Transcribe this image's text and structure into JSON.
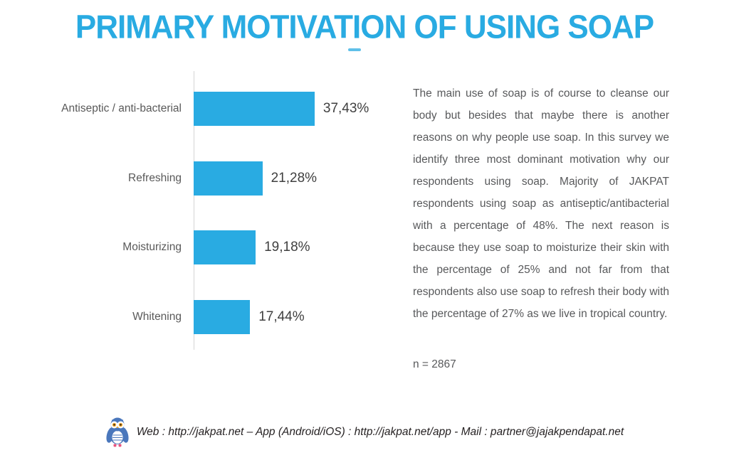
{
  "title": "PRIMARY MOTIVATION OF USING SOAP",
  "chart_data": {
    "type": "bar",
    "orientation": "horizontal",
    "title": "PRIMARY MOTIVATION OF USING SOAP",
    "categories": [
      "Antiseptic / anti-bacterial",
      "Refreshing",
      "Moisturizing",
      "Whitening"
    ],
    "values": [
      37.43,
      21.28,
      19.18,
      17.44
    ],
    "value_labels": [
      "37,43%",
      "21,28%",
      "19,18%",
      "17,44%"
    ],
    "xlabel": "",
    "ylabel": "",
    "xlim": [
      0,
      42
    ],
    "grid": false,
    "legend": "none",
    "bar_color": "#29ABE2"
  },
  "description": "The main use of soap is of course to cleanse our body but besides that maybe there is another reasons on why people use soap. In this survey we identify three most dominant motivation why our respondents using soap. Majority of JAKPAT respondents using soap as antiseptic/antibacterial with a percentage of 48%. The next reason is because they use soap to moisturize their skin with the percentage of 25% and not far from that respondents also use soap to refresh their body with the percentage of 27% as we live in tropical country.",
  "sample_size": "n = 2867",
  "footer": {
    "logo": "jakpat-owl-logo",
    "text": "Web : http://jakpat.net – App (Android/iOS) : http://jakpat.net/app  - Mail : partner@jajakpendapat.net"
  },
  "colors": {
    "accent_blue": "#29ABE2",
    "body_text": "#58595B",
    "category_label": "#595959",
    "value_label": "#3F3F3F",
    "axis_line": "#D5D5D5",
    "footer_text": "#231F20"
  }
}
